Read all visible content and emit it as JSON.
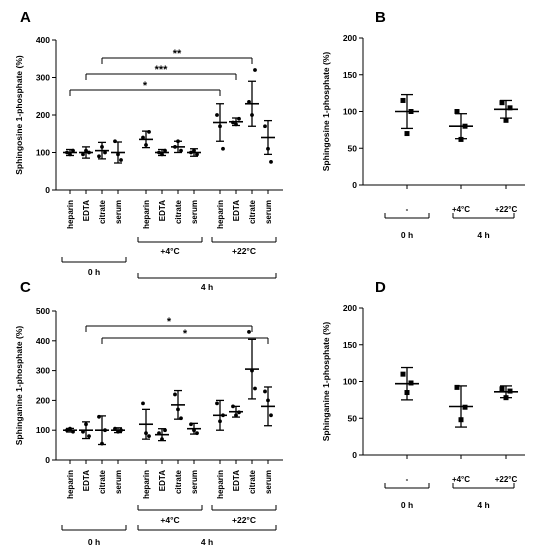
{
  "chart_data": [
    {
      "type": "scatter",
      "panel": "A",
      "ylabel": "Sphingosine 1-phosphate (%)",
      "ylim": [
        0,
        400
      ],
      "yticks": [
        0,
        100,
        200,
        300,
        400
      ],
      "categories": [
        "heparin",
        "EDTA",
        "citrate",
        "serum",
        "heparin",
        "EDTA",
        "citrate",
        "serum",
        "heparin",
        "EDTA",
        "citrate",
        "serum"
      ],
      "groups": [
        {
          "label": "0 h",
          "subgroups": []
        },
        {
          "label": "4 h",
          "subgroups": [
            {
              "label": "+4°C"
            },
            {
              "label": "+22°C"
            }
          ]
        }
      ],
      "points": [
        [
          100,
          95,
          105
        ],
        [
          95,
          105,
          100
        ],
        [
          90,
          115,
          100
        ],
        [
          130,
          95,
          80
        ],
        [
          140,
          120,
          155
        ],
        [
          100,
          95,
          105
        ],
        [
          115,
          130,
          105
        ],
        [
          100,
          105,
          95
        ],
        [
          200,
          170,
          110
        ],
        [
          180,
          175,
          190
        ],
        [
          235,
          200,
          320
        ],
        [
          170,
          110,
          75
        ]
      ],
      "mean": [
        100,
        100,
        105,
        100,
        135,
        100,
        115,
        100,
        180,
        182,
        230,
        140
      ],
      "sd": [
        8,
        15,
        22,
        28,
        22,
        8,
        15,
        10,
        50,
        10,
        60,
        45
      ],
      "significance": [
        {
          "from": 0,
          "to": 8,
          "label": "*"
        },
        {
          "from": 1,
          "to": 9,
          "label": "***"
        },
        {
          "from": 2,
          "to": 10,
          "label": "**"
        }
      ]
    },
    {
      "type": "scatter",
      "panel": "B",
      "ylabel": "Sphingosine 1-phosphate (%)",
      "ylim": [
        0,
        200
      ],
      "yticks": [
        0,
        50,
        100,
        150,
        200
      ],
      "categories": [
        "-",
        "+4°C",
        "+22°C"
      ],
      "groups": [
        {
          "label": "0 h"
        },
        {
          "label": "4 h"
        }
      ],
      "points": [
        [
          115,
          100,
          70
        ],
        [
          100,
          80,
          62
        ],
        [
          112,
          105,
          88
        ]
      ],
      "mean": [
        100,
        80,
        103
      ],
      "sd": [
        23,
        17,
        12
      ]
    },
    {
      "type": "scatter",
      "panel": "C",
      "ylabel": "Sphinganine 1-phosphate (%)",
      "ylim": [
        0,
        500
      ],
      "yticks": [
        0,
        100,
        200,
        300,
        400,
        500
      ],
      "categories": [
        "heparin",
        "EDTA",
        "citrate",
        "serum",
        "heparin",
        "EDTA",
        "citrate",
        "serum",
        "heparin",
        "EDTA",
        "citrate",
        "serum"
      ],
      "groups": [
        {
          "label": "0 h",
          "subgroups": []
        },
        {
          "label": "4 h",
          "subgroups": [
            {
              "label": "+4°C"
            },
            {
              "label": "+22°C"
            }
          ]
        }
      ],
      "points": [
        [
          100,
          105,
          95
        ],
        [
          95,
          120,
          80
        ],
        [
          145,
          55,
          100
        ],
        [
          105,
          95,
          100
        ],
        [
          190,
          90,
          80
        ],
        [
          90,
          70,
          100
        ],
        [
          220,
          170,
          140
        ],
        [
          120,
          100,
          90
        ],
        [
          190,
          130,
          150
        ],
        [
          180,
          150,
          160
        ],
        [
          430,
          300,
          240
        ],
        [
          230,
          200,
          150
        ]
      ],
      "mean": [
        100,
        100,
        100,
        100,
        120,
        85,
        185,
        105,
        150,
        162,
        305,
        180
      ],
      "sd": [
        6,
        28,
        48,
        8,
        50,
        20,
        48,
        18,
        50,
        18,
        100,
        65
      ],
      "significance": [
        {
          "from": 1,
          "to": 10,
          "label": "*"
        },
        {
          "from": 2,
          "to": 11,
          "label": "*"
        }
      ]
    },
    {
      "type": "scatter",
      "panel": "D",
      "ylabel": "Sphinganine 1-phosphate (%)",
      "ylim": [
        0,
        200
      ],
      "yticks": [
        0,
        50,
        100,
        150,
        200
      ],
      "categories": [
        "-",
        "+4°C",
        "+22°C"
      ],
      "groups": [
        {
          "label": "0 h"
        },
        {
          "label": "4 h"
        }
      ],
      "points": [
        [
          110,
          98,
          85
        ],
        [
          92,
          65,
          48
        ],
        [
          90,
          87,
          78
        ]
      ],
      "mean": [
        97,
        66,
        86
      ],
      "sd": [
        22,
        28,
        8
      ]
    }
  ]
}
